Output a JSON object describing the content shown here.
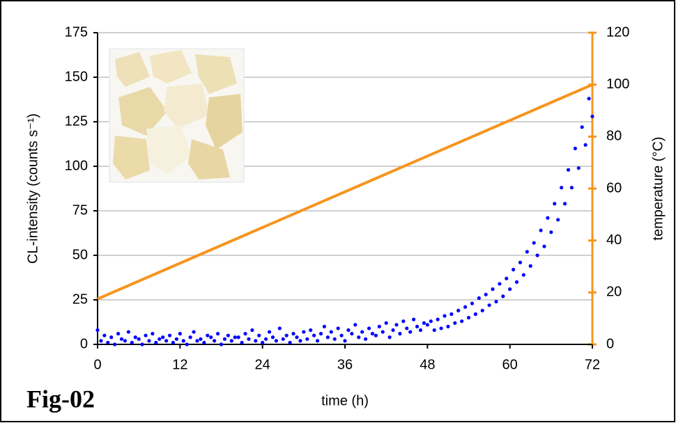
{
  "chart_data": {
    "type": "scatter",
    "figure_label": "Fig-02",
    "xlabel": "time (h)",
    "ylabel": "CL-intensity (counts s⁻¹)",
    "y2label": "temperature (°C)",
    "xlim": [
      0,
      72
    ],
    "xticks": [
      0,
      12,
      24,
      36,
      48,
      60,
      72
    ],
    "ylim": [
      0,
      175
    ],
    "yticks": [
      0,
      25,
      50,
      75,
      100,
      125,
      150,
      175
    ],
    "y2lim": [
      0,
      120
    ],
    "y2ticks": [
      0,
      20,
      40,
      60,
      80,
      100,
      120
    ],
    "grid": true,
    "series": [
      {
        "type": "scatter",
        "color": "#0000ff",
        "x": [
          0,
          0.5,
          1,
          1.5,
          2,
          2.5,
          3,
          3.5,
          4,
          4.5,
          5,
          5.5,
          6,
          6.5,
          7,
          7.5,
          8,
          8.5,
          9,
          9.5,
          10,
          10.5,
          11,
          11.5,
          12,
          12.5,
          13,
          13.5,
          14,
          14.5,
          15,
          15.5,
          16,
          16.5,
          17,
          17.5,
          18,
          18.5,
          19,
          19.5,
          20,
          20.5,
          21,
          21.5,
          22,
          22.5,
          23,
          23.5,
          24,
          24.5,
          25,
          25.5,
          26,
          26.5,
          27,
          27.5,
          28,
          28.5,
          29,
          29.5,
          30,
          30.5,
          31,
          31.5,
          32,
          32.5,
          33,
          33.5,
          34,
          34.5,
          35,
          35.5,
          36,
          36.5,
          37,
          37.5,
          38,
          38.5,
          39,
          39.5,
          40,
          40.5,
          41,
          41.5,
          42,
          42.5,
          43,
          43.5,
          44,
          44.5,
          45,
          45.5,
          46,
          46.5,
          47,
          47.5,
          48,
          48.5,
          49,
          49.5,
          50,
          50.5,
          51,
          51.5,
          52,
          52.5,
          53,
          53.5,
          54,
          54.5,
          55,
          55.5,
          56,
          56.5,
          57,
          57.5,
          58,
          58.5,
          59,
          59.5,
          60,
          60.5,
          61,
          61.5,
          62,
          62.5,
          63,
          63.5,
          64,
          64.5,
          65,
          65.5,
          66,
          66.5,
          67,
          67.5,
          68,
          68.5,
          69,
          69.5,
          70,
          70.5,
          71,
          71.5,
          72
        ],
        "values": [
          8,
          2,
          5,
          1,
          4,
          0,
          6,
          3,
          2,
          7,
          1,
          4,
          3,
          0,
          5,
          2,
          6,
          1,
          3,
          4,
          2,
          5,
          1,
          3,
          6,
          2,
          0,
          4,
          7,
          2,
          3,
          1,
          5,
          4,
          2,
          6,
          0,
          3,
          5,
          2,
          4,
          4,
          1,
          6,
          3,
          8,
          2,
          5,
          1,
          3,
          7,
          4,
          2,
          9,
          3,
          5,
          1,
          6,
          4,
          2,
          7,
          3,
          8,
          5,
          2,
          6,
          10,
          4,
          7,
          3,
          9,
          5,
          2,
          8,
          6,
          11,
          4,
          7,
          3,
          9,
          6,
          5,
          10,
          7,
          12,
          4,
          8,
          11,
          6,
          13,
          9,
          7,
          14,
          10,
          8,
          12,
          11,
          13,
          8,
          14,
          9,
          16,
          10,
          17,
          12,
          19,
          13,
          21,
          15,
          23,
          17,
          26,
          19,
          28,
          22,
          31,
          24,
          34,
          27,
          37,
          31,
          42,
          35,
          46,
          39,
          52,
          44,
          57,
          50,
          64,
          55,
          71,
          63,
          79,
          70,
          88,
          79,
          98,
          88,
          110,
          99,
          122,
          112,
          138,
          128
        ]
      },
      {
        "type": "line",
        "axis": "y2",
        "color": "#f7941d",
        "x": [
          0,
          72
        ],
        "values": [
          17.5,
          100
        ]
      }
    ]
  }
}
